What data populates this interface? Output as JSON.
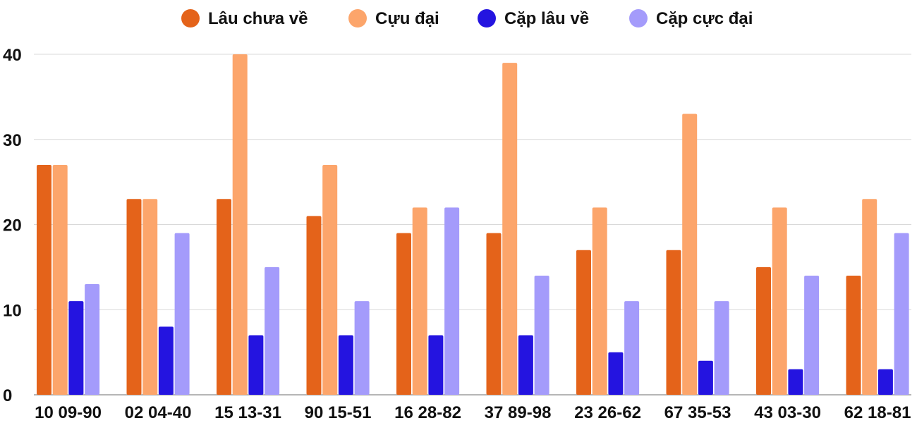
{
  "chart_data": {
    "type": "bar",
    "title": "",
    "xlabel": "",
    "ylabel": "",
    "ylim": [
      0,
      40
    ],
    "yticks": [
      "0",
      "10",
      "20",
      "30",
      "40"
    ],
    "grid": true,
    "legend_position": "top",
    "categories": [
      "10 09-90",
      "02 04-40",
      "15 13-31",
      "90 15-51",
      "16 28-82",
      "37 89-98",
      "23 26-62",
      "67 35-53",
      "43 03-30",
      "62 18-81"
    ],
    "series": [
      {
        "name": "Lâu chưa về",
        "color": "#e4631a",
        "values": [
          27,
          23,
          23,
          21,
          19,
          19,
          17,
          17,
          15,
          14
        ]
      },
      {
        "name": "Cựu đại",
        "color": "#fca56b",
        "values": [
          27,
          23,
          40,
          27,
          22,
          39,
          22,
          33,
          22,
          23
        ]
      },
      {
        "name": "Cặp lâu về",
        "color": "#2414e0",
        "values": [
          11,
          8,
          7,
          7,
          7,
          7,
          5,
          4,
          3,
          3
        ]
      },
      {
        "name": "Cặp cực đại",
        "color": "#a49bfb",
        "values": [
          13,
          19,
          15,
          11,
          22,
          14,
          11,
          11,
          14,
          19
        ]
      }
    ]
  }
}
